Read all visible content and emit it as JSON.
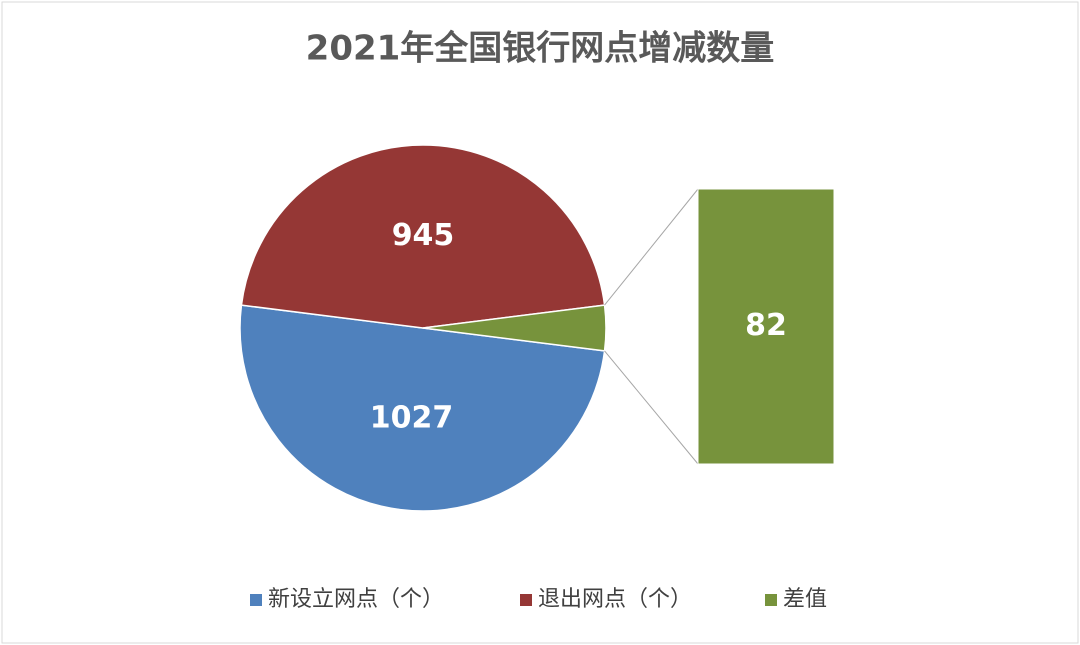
{
  "chart_data": {
    "type": "pie",
    "title": "2021年全国银行网点增减数量",
    "categories": [
      "新设立网点（个）",
      "退出网点（个）",
      "差值"
    ],
    "values": [
      1027,
      945,
      82
    ],
    "colors": [
      "#4f81bd",
      "#953735",
      "#77933c"
    ],
    "legend": "bottom"
  }
}
